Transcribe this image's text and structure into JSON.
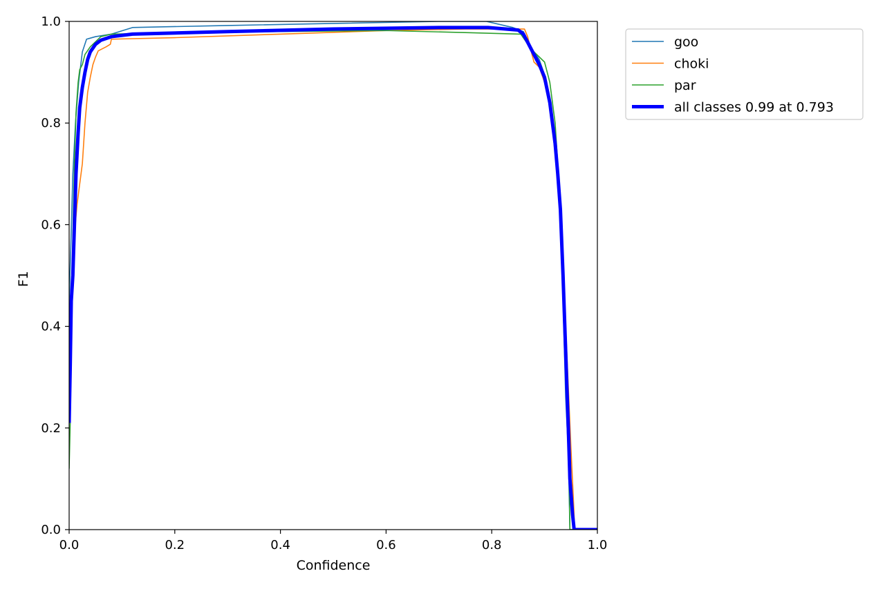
{
  "chart_data": {
    "type": "line",
    "title": "",
    "xlabel": "Confidence",
    "ylabel": "F1",
    "xlim": [
      0,
      1
    ],
    "ylim": [
      0,
      1
    ],
    "xticks": [
      "0.0",
      "0.2",
      "0.4",
      "0.6",
      "0.8",
      "1.0"
    ],
    "yticks": [
      "0.0",
      "0.2",
      "0.4",
      "0.6",
      "0.8",
      "1.0"
    ],
    "grid": false,
    "legend_position": "outside-top-right",
    "series": [
      {
        "name": "goo",
        "color": "#1f77b4",
        "emphasis": false,
        "points": [
          [
            0.0,
            0.45
          ],
          [
            0.003,
            0.55
          ],
          [
            0.007,
            0.7
          ],
          [
            0.012,
            0.8
          ],
          [
            0.018,
            0.88
          ],
          [
            0.025,
            0.94
          ],
          [
            0.033,
            0.965
          ],
          [
            0.05,
            0.97
          ],
          [
            0.08,
            0.975
          ],
          [
            0.12,
            0.988
          ],
          [
            0.3,
            0.992
          ],
          [
            0.5,
            0.996
          ],
          [
            0.7,
            1.0
          ],
          [
            0.79,
            1.0
          ],
          [
            0.84,
            0.988
          ],
          [
            0.86,
            0.98
          ],
          [
            0.87,
            0.955
          ],
          [
            0.88,
            0.94
          ],
          [
            0.89,
            0.925
          ],
          [
            0.9,
            0.895
          ],
          [
            0.91,
            0.845
          ],
          [
            0.92,
            0.76
          ],
          [
            0.925,
            0.69
          ],
          [
            0.93,
            0.62
          ],
          [
            0.935,
            0.45
          ],
          [
            0.94,
            0.26
          ],
          [
            0.945,
            0.15
          ],
          [
            0.948,
            0.0
          ],
          [
            1.0,
            0.0
          ]
        ]
      },
      {
        "name": "choki",
        "color": "#ff7f0e",
        "emphasis": false,
        "points": [
          [
            0.0,
            0.33
          ],
          [
            0.005,
            0.48
          ],
          [
            0.01,
            0.58
          ],
          [
            0.015,
            0.64
          ],
          [
            0.02,
            0.68
          ],
          [
            0.025,
            0.72
          ],
          [
            0.03,
            0.8
          ],
          [
            0.035,
            0.86
          ],
          [
            0.04,
            0.89
          ],
          [
            0.045,
            0.915
          ],
          [
            0.05,
            0.93
          ],
          [
            0.055,
            0.942
          ],
          [
            0.07,
            0.95
          ],
          [
            0.078,
            0.955
          ],
          [
            0.08,
            0.965
          ],
          [
            0.2,
            0.968
          ],
          [
            0.4,
            0.975
          ],
          [
            0.6,
            0.982
          ],
          [
            0.75,
            0.985
          ],
          [
            0.85,
            0.985
          ],
          [
            0.862,
            0.985
          ],
          [
            0.868,
            0.97
          ],
          [
            0.875,
            0.94
          ],
          [
            0.88,
            0.92
          ],
          [
            0.89,
            0.91
          ],
          [
            0.9,
            0.88
          ],
          [
            0.91,
            0.84
          ],
          [
            0.92,
            0.74
          ],
          [
            0.93,
            0.63
          ],
          [
            0.935,
            0.53
          ],
          [
            0.94,
            0.4
          ],
          [
            0.945,
            0.28
          ],
          [
            0.95,
            0.16
          ],
          [
            0.955,
            0.05
          ],
          [
            0.957,
            0.0
          ],
          [
            1.0,
            0.0
          ]
        ]
      },
      {
        "name": "par",
        "color": "#2ca02c",
        "emphasis": false,
        "points": [
          [
            0.0,
            0.12
          ],
          [
            0.002,
            0.21
          ],
          [
            0.004,
            0.4
          ],
          [
            0.007,
            0.58
          ],
          [
            0.01,
            0.72
          ],
          [
            0.013,
            0.82
          ],
          [
            0.017,
            0.88
          ],
          [
            0.02,
            0.905
          ],
          [
            0.025,
            0.915
          ],
          [
            0.03,
            0.935
          ],
          [
            0.04,
            0.95
          ],
          [
            0.05,
            0.96
          ],
          [
            0.06,
            0.97
          ],
          [
            0.08,
            0.975
          ],
          [
            0.2,
            0.978
          ],
          [
            0.4,
            0.98
          ],
          [
            0.6,
            0.982
          ],
          [
            0.75,
            0.978
          ],
          [
            0.855,
            0.975
          ],
          [
            0.865,
            0.96
          ],
          [
            0.875,
            0.945
          ],
          [
            0.885,
            0.935
          ],
          [
            0.9,
            0.92
          ],
          [
            0.905,
            0.9
          ],
          [
            0.91,
            0.88
          ],
          [
            0.92,
            0.8
          ],
          [
            0.925,
            0.72
          ],
          [
            0.93,
            0.63
          ],
          [
            0.935,
            0.5
          ],
          [
            0.94,
            0.35
          ],
          [
            0.945,
            0.2
          ],
          [
            0.948,
            0.0
          ],
          [
            1.0,
            0.0
          ]
        ]
      },
      {
        "name": "all classes 0.99 at 0.793",
        "color": "#0000ff",
        "emphasis": true,
        "points": [
          [
            0.0,
            0.21
          ],
          [
            0.002,
            0.32
          ],
          [
            0.004,
            0.45
          ],
          [
            0.007,
            0.5
          ],
          [
            0.01,
            0.6
          ],
          [
            0.013,
            0.7
          ],
          [
            0.017,
            0.78
          ],
          [
            0.02,
            0.83
          ],
          [
            0.025,
            0.87
          ],
          [
            0.03,
            0.9
          ],
          [
            0.035,
            0.925
          ],
          [
            0.04,
            0.94
          ],
          [
            0.05,
            0.955
          ],
          [
            0.06,
            0.963
          ],
          [
            0.08,
            0.97
          ],
          [
            0.12,
            0.975
          ],
          [
            0.3,
            0.98
          ],
          [
            0.5,
            0.985
          ],
          [
            0.7,
            0.988
          ],
          [
            0.793,
            0.988
          ],
          [
            0.85,
            0.983
          ],
          [
            0.86,
            0.975
          ],
          [
            0.87,
            0.955
          ],
          [
            0.88,
            0.935
          ],
          [
            0.89,
            0.915
          ],
          [
            0.9,
            0.89
          ],
          [
            0.91,
            0.84
          ],
          [
            0.92,
            0.76
          ],
          [
            0.925,
            0.7
          ],
          [
            0.93,
            0.63
          ],
          [
            0.935,
            0.5
          ],
          [
            0.94,
            0.35
          ],
          [
            0.945,
            0.2
          ],
          [
            0.948,
            0.1
          ],
          [
            0.953,
            0.03
          ],
          [
            0.956,
            0.0
          ],
          [
            1.0,
            0.0
          ]
        ]
      }
    ]
  }
}
